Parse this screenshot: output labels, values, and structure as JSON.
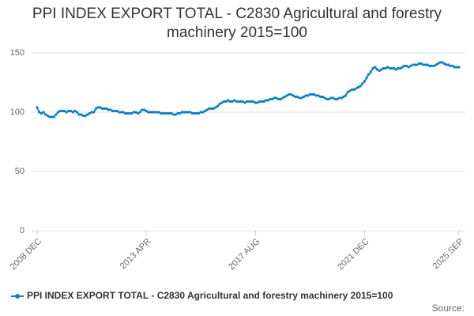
{
  "chart_data": {
    "type": "line",
    "title": "PPI INDEX EXPORT TOTAL - C2830 Agricultural and forestry machinery 2015=100",
    "source": "Source:",
    "categories": [
      "2008 DEC",
      null,
      null,
      null,
      null,
      null,
      null,
      null,
      null,
      null,
      null,
      null,
      null,
      null,
      null,
      null,
      null,
      null,
      null,
      null,
      null,
      null,
      null,
      null,
      null,
      null,
      null,
      null,
      null,
      null,
      null,
      null,
      null,
      null,
      null,
      null,
      null,
      null,
      null,
      null,
      null,
      null,
      null,
      null,
      null,
      null,
      null,
      null,
      null,
      null,
      null,
      null,
      "2013 APR",
      null,
      null,
      null,
      null,
      null,
      null,
      null,
      null,
      null,
      null,
      null,
      null,
      null,
      null,
      null,
      null,
      null,
      null,
      null,
      null,
      null,
      null,
      null,
      null,
      null,
      null,
      null,
      null,
      null,
      null,
      null,
      null,
      null,
      null,
      null,
      null,
      null,
      null,
      null,
      null,
      null,
      null,
      null,
      null,
      null,
      null,
      null,
      null,
      null,
      null,
      null,
      "2017 AUG",
      null,
      null,
      null,
      null,
      null,
      null,
      null,
      null,
      null,
      null,
      null,
      null,
      null,
      null,
      null,
      null,
      null,
      null,
      null,
      null,
      null,
      null,
      null,
      null,
      null,
      null,
      null,
      null,
      null,
      null,
      null,
      null,
      null,
      null,
      null,
      null,
      null,
      null,
      null,
      null,
      null,
      null,
      null,
      null,
      null,
      null,
      null,
      null,
      null,
      null,
      null,
      "2021 DEC",
      null,
      null,
      null,
      null,
      null,
      null,
      null,
      null,
      null,
      null,
      null,
      null,
      null,
      null,
      null,
      null,
      null,
      null,
      null,
      null,
      null,
      null,
      null,
      null,
      null,
      null,
      null,
      null,
      null,
      null,
      null,
      null,
      null,
      null,
      null,
      null,
      null,
      null,
      null,
      null,
      null,
      null,
      null,
      null,
      "2025 SEP"
    ],
    "series": [
      {
        "name": "PPI INDEX EXPORT TOTAL - C2830 Agricultural and forestry machinery 2015=100",
        "color": "#0a7fc1",
        "values": [
          104,
          100,
          99,
          100,
          98,
          97,
          96,
          96,
          96,
          98,
          100,
          101,
          101,
          101,
          100,
          101,
          101,
          100,
          101,
          100,
          98,
          98,
          97,
          97,
          98,
          99,
          100,
          100,
          103,
          104,
          104,
          103,
          103,
          103,
          102,
          102,
          101,
          101,
          101,
          100,
          100,
          100,
          99,
          99,
          99,
          99,
          100,
          100,
          99,
          100,
          102,
          102,
          101,
          100,
          100,
          100,
          100,
          100,
          100,
          99,
          99,
          99,
          99,
          99,
          99,
          98,
          98,
          99,
          99,
          100,
          100,
          100,
          100,
          100,
          99,
          99,
          99,
          99,
          100,
          100,
          101,
          102,
          103,
          103,
          103,
          104,
          105,
          107,
          108,
          109,
          109,
          110,
          109,
          109,
          110,
          109,
          109,
          109,
          109,
          108,
          109,
          109,
          109,
          109,
          108,
          108,
          109,
          109,
          109,
          110,
          110,
          111,
          111,
          112,
          112,
          111,
          111,
          112,
          113,
          114,
          115,
          115,
          114,
          113,
          113,
          112,
          112,
          113,
          114,
          114,
          115,
          115,
          115,
          114,
          114,
          113,
          113,
          112,
          111,
          111,
          112,
          112,
          111,
          111,
          112,
          112,
          113,
          114,
          117,
          118,
          119,
          119,
          120,
          121,
          122,
          124,
          126,
          129,
          132,
          134,
          137,
          138,
          136,
          135,
          136,
          137,
          137,
          138,
          137,
          137,
          137,
          136,
          137,
          137,
          138,
          139,
          139,
          138,
          139,
          140,
          140,
          140,
          141,
          141,
          140,
          140,
          140,
          139,
          139,
          139,
          140,
          141,
          142,
          142,
          141,
          140,
          140,
          139,
          139,
          138,
          138,
          138
        ]
      }
    ],
    "ylim": [
      0,
      150
    ],
    "yticks": [
      0,
      50,
      100,
      150
    ],
    "grid": true
  }
}
